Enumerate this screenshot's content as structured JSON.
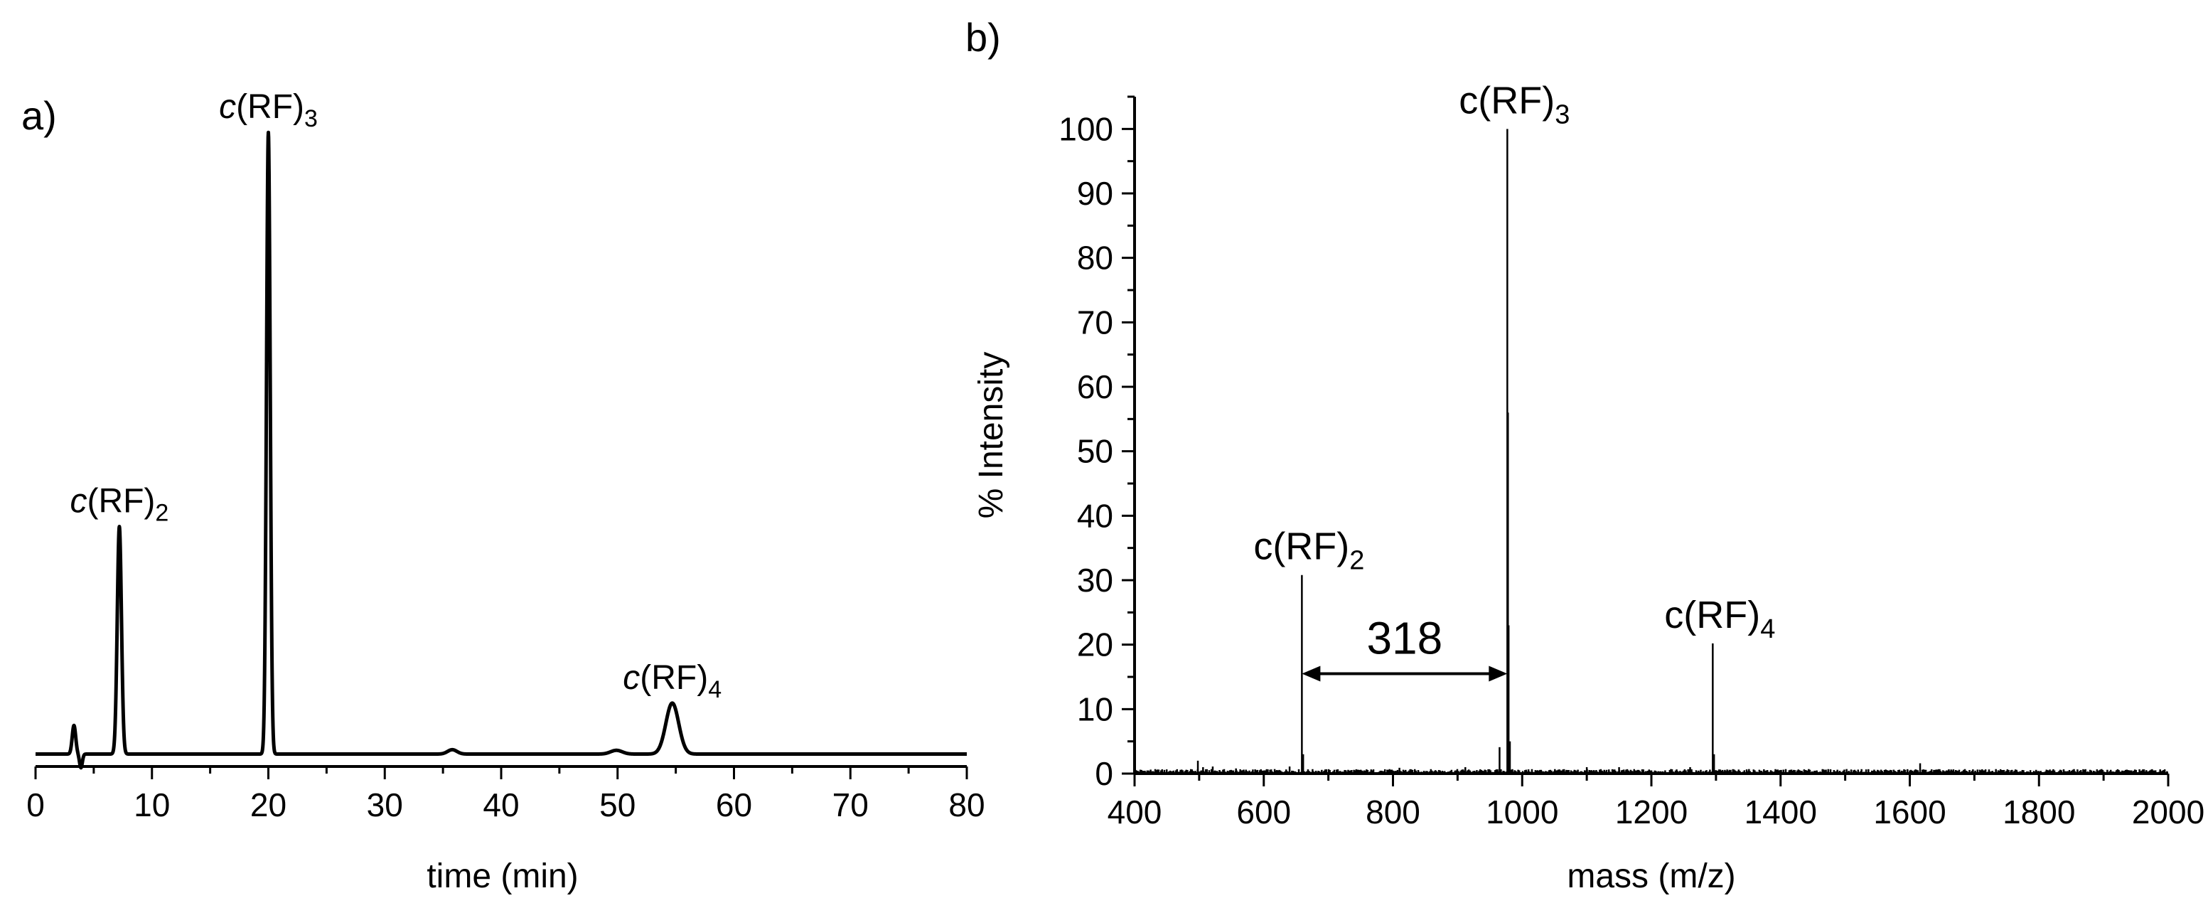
{
  "chart_data": [
    {
      "panel": "a)",
      "type": "line",
      "title": "",
      "xlabel": "time (min)",
      "ylabel": "",
      "xlim": [
        0,
        80
      ],
      "xticks": [
        0,
        10,
        20,
        30,
        40,
        50,
        60,
        70,
        80
      ],
      "ylim": [
        0,
        105
      ],
      "y_axis_visible": false,
      "grid": false,
      "baseline": 2,
      "peaks": [
        {
          "x": 3.3,
          "height": 4.6,
          "width": 0.15
        },
        {
          "x": 3.9,
          "height": -2.2,
          "width": 0.12
        },
        {
          "x": 7.2,
          "height": 36.6,
          "width": 0.18
        },
        {
          "x": 20.0,
          "height": 100,
          "width": 0.16
        },
        {
          "x": 35.8,
          "height": 0.7,
          "width": 0.4
        },
        {
          "x": 49.9,
          "height": 0.6,
          "width": 0.5
        },
        {
          "x": 54.7,
          "height": 8.2,
          "width": 0.55
        }
      ],
      "annotations": [
        {
          "prefix": "c",
          "text": "(RF)",
          "sub": "2",
          "x": 7.2
        },
        {
          "prefix": "c",
          "text": "(RF)",
          "sub": "3",
          "x": 20.0
        },
        {
          "prefix": "c",
          "text": "(RF)",
          "sub": "4",
          "x": 54.7
        }
      ]
    },
    {
      "panel": "b)",
      "type": "bar",
      "title": "",
      "xlabel": "mass (m/z)",
      "ylabel": "% Intensity",
      "xlim": [
        400,
        2000
      ],
      "xticks": [
        400,
        600,
        800,
        1000,
        1200,
        1400,
        1600,
        1800,
        2000
      ],
      "ylim": [
        0,
        105
      ],
      "yticks": [
        0,
        10,
        20,
        30,
        40,
        50,
        60,
        70,
        80,
        90,
        100
      ],
      "grid": false,
      "peaks": [
        {
          "mz": 498,
          "intensity": 2.0
        },
        {
          "mz": 506,
          "intensity": 1.0
        },
        {
          "mz": 521,
          "intensity": 1.1
        },
        {
          "mz": 557,
          "intensity": 0.8
        },
        {
          "mz": 640,
          "intensity": 1.1
        },
        {
          "mz": 659,
          "intensity": 30.8
        },
        {
          "mz": 661,
          "intensity": 3.0
        },
        {
          "mz": 810,
          "intensity": 0.9
        },
        {
          "mz": 912,
          "intensity": 1.0
        },
        {
          "mz": 965,
          "intensity": 4.1
        },
        {
          "mz": 977,
          "intensity": 100
        },
        {
          "mz": 978,
          "intensity": 56.0
        },
        {
          "mz": 979,
          "intensity": 23.0
        },
        {
          "mz": 981,
          "intensity": 5.0
        },
        {
          "mz": 1100,
          "intensity": 1.0
        },
        {
          "mz": 1150,
          "intensity": 1.0
        },
        {
          "mz": 1260,
          "intensity": 1.0
        },
        {
          "mz": 1295,
          "intensity": 20.2
        },
        {
          "mz": 1297,
          "intensity": 3.0
        },
        {
          "mz": 1616,
          "intensity": 1.6
        }
      ],
      "annotations": [
        {
          "text": "c(RF)",
          "sub": "2",
          "mz": 659
        },
        {
          "text": "c(RF)",
          "sub": "3",
          "mz": 977
        },
        {
          "text": "c(RF)",
          "sub": "4",
          "mz": 1295
        }
      ],
      "difference_arrow": {
        "from": 659,
        "to": 977,
        "y": 15.5,
        "label": "318"
      }
    }
  ]
}
